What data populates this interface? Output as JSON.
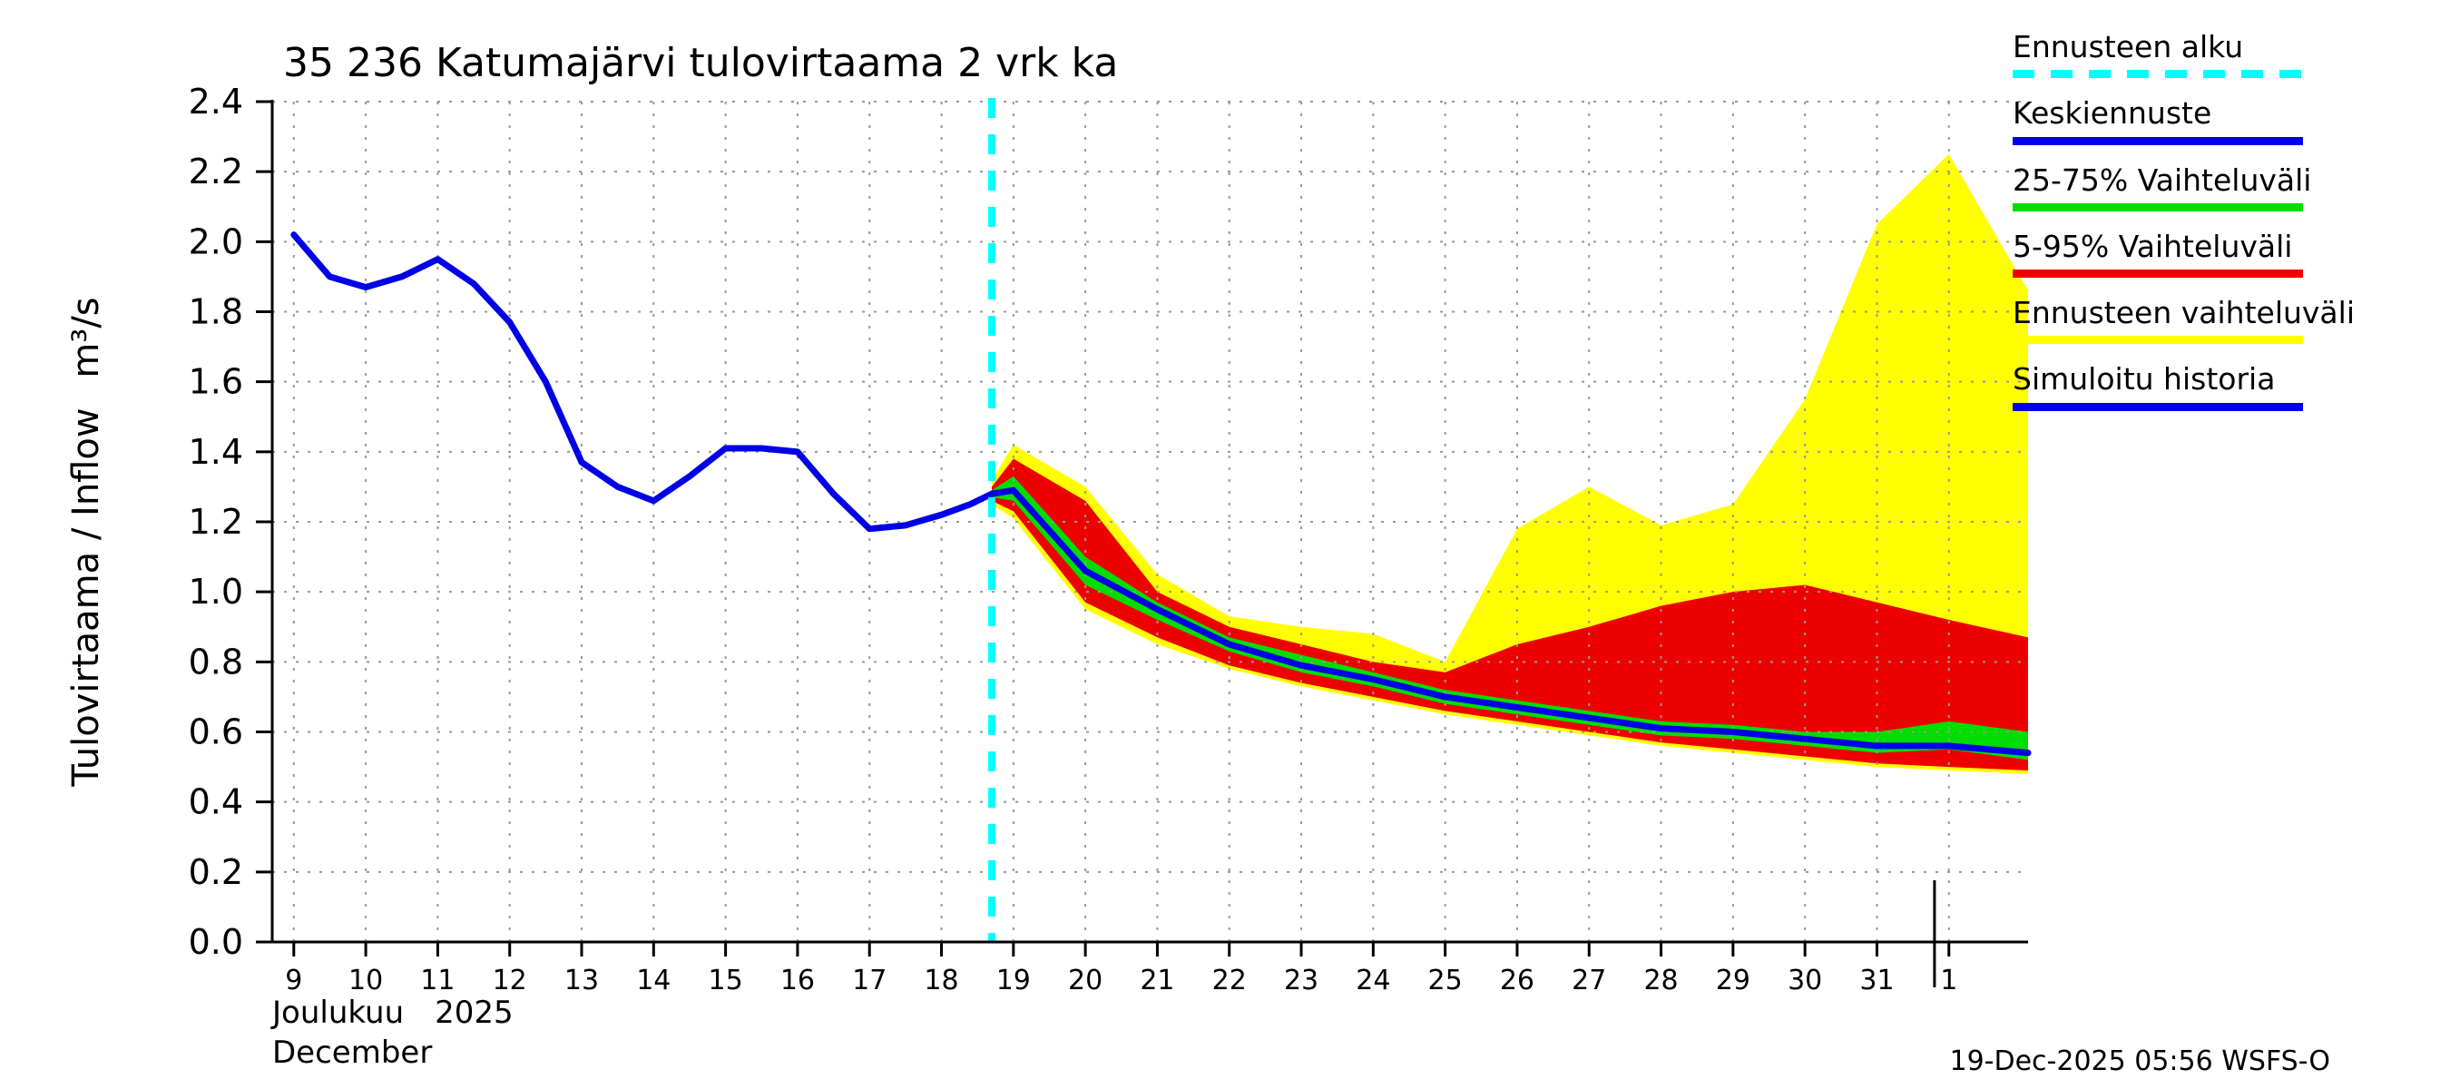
{
  "title": "35 236 Katumajärvi tulovirtaama 2 vrk ka",
  "y_axis": {
    "label": "Tulovirtaama / Inflow",
    "unit": "m³/s",
    "min": 0,
    "max": 2.4,
    "step": 0.2,
    "tick_labels": [
      "0.0",
      "0.2",
      "0.4",
      "0.6",
      "0.8",
      "1.0",
      "1.2",
      "1.4",
      "1.6",
      "1.8",
      "2.0",
      "2.2",
      "2.4"
    ]
  },
  "x_axis": {
    "month_fi": "Joulukuu",
    "year": "2025",
    "month_en": "December",
    "tick_days": [
      9,
      10,
      11,
      12,
      13,
      14,
      15,
      16,
      17,
      18,
      19,
      20,
      21,
      22,
      23,
      24,
      25,
      26,
      27,
      28,
      29,
      30,
      31,
      32
    ],
    "tick_labels": [
      "9",
      "10",
      "11",
      "12",
      "13",
      "14",
      "15",
      "16",
      "17",
      "18",
      "19",
      "20",
      "21",
      "22",
      "23",
      "24",
      "25",
      "26",
      "27",
      "28",
      "29",
      "30",
      "31",
      "1"
    ],
    "month_boundary_day": 31.8
  },
  "footer": {
    "timestamp": "19-Dec-2025 05:56 WSFS-O"
  },
  "colors": {
    "median": "#0000e6",
    "history": "#0000e6",
    "range_50": "#00dd00",
    "range_90": "#ee0000",
    "range_full": "#ffff00",
    "forecast_start": "#00ffff",
    "grid": "#999999",
    "axis": "#000000"
  },
  "legend": [
    {
      "label": "Ennusteen alku",
      "color": "#00ffff",
      "style": "dashed"
    },
    {
      "label": "Keskiennuste",
      "color": "#0000e6",
      "style": "solid"
    },
    {
      "label": "25-75% Vaihteluväli",
      "color": "#00dd00",
      "style": "solid"
    },
    {
      "label": "5-95% Vaihteluväli",
      "color": "#ee0000",
      "style": "solid"
    },
    {
      "label": "Ennusteen vaihteluväli",
      "color": "#ffff00",
      "style": "solid"
    },
    {
      "label": "Simuloitu historia",
      "color": "#0000e6",
      "style": "solid"
    }
  ],
  "chart_data": {
    "type": "line",
    "title": "35 236 Katumajärvi tulovirtaama 2 vrk ka",
    "xlabel": "Joulukuu 2025 / December",
    "ylabel": "Tulovirtaama / Inflow (m³/s)",
    "x_domain": [
      8.7,
      33.1
    ],
    "y_domain": [
      0,
      2.4
    ],
    "grid": true,
    "forecast_start": 18.7,
    "history": {
      "name": "Simuloitu historia",
      "x": [
        9,
        9.5,
        10,
        10.5,
        11,
        11.5,
        12,
        12.5,
        13,
        13.5,
        14,
        14.5,
        15,
        15.5,
        16,
        16.5,
        17,
        17.5,
        18,
        18.4,
        18.7
      ],
      "y": [
        2.02,
        1.9,
        1.87,
        1.9,
        1.95,
        1.88,
        1.77,
        1.6,
        1.37,
        1.3,
        1.26,
        1.33,
        1.41,
        1.41,
        1.4,
        1.28,
        1.18,
        1.19,
        1.22,
        1.25,
        1.28
      ]
    },
    "forecast": {
      "x": [
        18.7,
        19,
        20,
        21,
        22,
        23,
        24,
        25,
        26,
        27,
        28,
        29,
        30,
        31,
        32,
        33.1
      ],
      "median": [
        1.28,
        1.29,
        1.06,
        0.95,
        0.85,
        0.79,
        0.75,
        0.7,
        0.67,
        0.64,
        0.61,
        0.6,
        0.58,
        0.56,
        0.56,
        0.54
      ],
      "p75": [
        1.29,
        1.33,
        1.1,
        0.97,
        0.87,
        0.82,
        0.77,
        0.72,
        0.69,
        0.66,
        0.63,
        0.62,
        0.6,
        0.6,
        0.63,
        0.6
      ],
      "p25": [
        1.27,
        1.26,
        1.02,
        0.92,
        0.83,
        0.77,
        0.73,
        0.68,
        0.65,
        0.62,
        0.59,
        0.58,
        0.56,
        0.54,
        0.55,
        0.52
      ],
      "p95": [
        1.3,
        1.38,
        1.26,
        1.0,
        0.9,
        0.85,
        0.8,
        0.77,
        0.85,
        0.9,
        0.96,
        1.0,
        1.02,
        0.97,
        0.92,
        0.87
      ],
      "p05": [
        1.26,
        1.23,
        0.97,
        0.87,
        0.79,
        0.74,
        0.7,
        0.66,
        0.63,
        0.6,
        0.57,
        0.55,
        0.53,
        0.51,
        0.5,
        0.49
      ],
      "max": [
        1.32,
        1.42,
        1.3,
        1.05,
        0.93,
        0.9,
        0.88,
        0.8,
        1.18,
        1.3,
        1.19,
        1.25,
        1.55,
        2.05,
        2.25,
        1.86
      ],
      "min": [
        1.25,
        1.21,
        0.95,
        0.85,
        0.78,
        0.73,
        0.69,
        0.65,
        0.62,
        0.59,
        0.56,
        0.54,
        0.52,
        0.5,
        0.49,
        0.48
      ]
    }
  }
}
